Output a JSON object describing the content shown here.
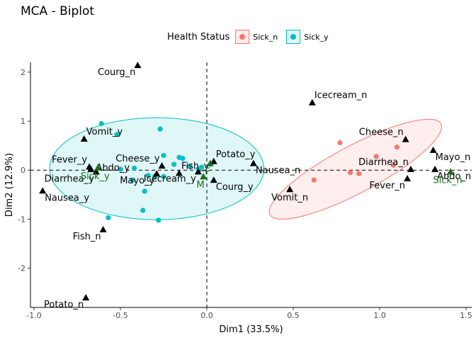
{
  "chart_data": {
    "type": "scatter",
    "title": "MCA - Biplot",
    "xlabel": "Dim1 (33.5%)",
    "ylabel": "Dim2 (12.9%)",
    "xlim": [
      -1.0,
      1.5
    ],
    "ylim": [
      -2.8,
      2.2
    ],
    "x_ticks": [
      "-1.0",
      "-0.5",
      "0.0",
      "0.5",
      "1.0",
      "1.5"
    ],
    "y_ticks": [
      "-2",
      "-1",
      "0",
      "1",
      "2"
    ],
    "grid": false,
    "reference_lines": {
      "x": 0,
      "y": 0,
      "style": "dashed"
    },
    "legend": {
      "title": "Health Status",
      "position": "top",
      "entries": [
        {
          "label": "Sick_n",
          "color": "#f8766d",
          "fill": "#fdecea"
        },
        {
          "label": "Sick_y",
          "color": "#00bfc4",
          "fill": "#e1f6f6"
        }
      ]
    },
    "series": [
      {
        "name": "Sick_n",
        "color": "#f8766d",
        "points": [
          [
            0.77,
            0.56
          ],
          [
            0.62,
            -0.2
          ],
          [
            0.83,
            -0.05
          ],
          [
            0.88,
            -0.07
          ],
          [
            0.98,
            0.28
          ],
          [
            1.1,
            0.47
          ],
          [
            1.08,
            0.1
          ]
        ]
      },
      {
        "name": "Sick_y",
        "color": "#00bfc4",
        "points": [
          [
            -0.61,
            0.95
          ],
          [
            -0.52,
            0.73
          ],
          [
            -0.5,
            0.02
          ],
          [
            -0.27,
            0.84
          ],
          [
            -0.25,
            0.3
          ],
          [
            -0.42,
            0.04
          ],
          [
            -0.19,
            0.12
          ],
          [
            -0.16,
            0.26
          ],
          [
            -0.14,
            0.24
          ],
          [
            -0.1,
            0.08
          ],
          [
            -0.43,
            -0.2
          ],
          [
            -0.36,
            -0.43
          ],
          [
            -0.34,
            -0.11
          ],
          [
            -0.3,
            -0.12
          ],
          [
            -0.25,
            -0.13
          ],
          [
            -0.37,
            -0.82
          ],
          [
            -0.28,
            -1.02
          ],
          [
            -0.57,
            -0.97
          ],
          [
            -0.05,
            0.02
          ],
          [
            -0.03,
            0.06
          ],
          [
            0.02,
            0.12
          ]
        ]
      }
    ],
    "variable_categories": [
      {
        "label": "Courg_n",
        "x": -0.4,
        "y": 2.14,
        "label_pos": "below-left"
      },
      {
        "label": "Icecream_n",
        "x": 0.61,
        "y": 1.38,
        "label_pos": "above-right"
      },
      {
        "label": "Cheese_n",
        "x": 1.15,
        "y": 0.63,
        "label_pos": "above-left"
      },
      {
        "label": "Vomit_y",
        "x": -0.71,
        "y": 0.64,
        "label_pos": "above-right"
      },
      {
        "label": "Mayo_n",
        "x": 1.31,
        "y": 0.41,
        "label_pos": "below-right"
      },
      {
        "label": "Cheese_y",
        "x": -0.26,
        "y": 0.09,
        "label_pos": "above-left"
      },
      {
        "label": "Potato_y",
        "x": 0.04,
        "y": 0.18,
        "label_pos": "above-right"
      },
      {
        "label": "Fever_y",
        "x": -0.68,
        "y": 0.07,
        "label_pos": "above-left"
      },
      {
        "label": "Abdo_y",
        "x": -0.67,
        "y": 0.02,
        "label_pos": "right"
      },
      {
        "label": "Fish_y",
        "x": -0.16,
        "y": -0.06,
        "label_pos": "above-right"
      },
      {
        "label": "Nausea_n",
        "x": 0.27,
        "y": 0.14,
        "label_pos": "below-right"
      },
      {
        "label": "Diarrhea_n",
        "x": 1.18,
        "y": 0.02,
        "label_pos": "above-left"
      },
      {
        "label": "Diarrhea_y",
        "x": -0.64,
        "y": -0.03,
        "label_pos": "below-left"
      },
      {
        "label": "Mayo_y",
        "x": -0.29,
        "y": -0.07,
        "label_pos": "below-left"
      },
      {
        "label": "Courg_y",
        "x": 0.04,
        "y": -0.2,
        "label_pos": "below-right"
      },
      {
        "label": "Fever_n",
        "x": 1.16,
        "y": -0.17,
        "label_pos": "below-left"
      },
      {
        "label": "Abdo_n",
        "x": 1.32,
        "y": 0.02,
        "label_pos": "below-right"
      },
      {
        "label": "Nausea_y",
        "x": -0.95,
        "y": -0.42,
        "label_pos": "below-right"
      },
      {
        "label": "Vomit_n",
        "x": 0.48,
        "y": -0.39,
        "label_pos": "below"
      },
      {
        "label": "Icecream_y",
        "x": -0.05,
        "y": -0.03,
        "label_pos": "below-left"
      },
      {
        "label": "Fish_n",
        "x": -0.6,
        "y": -1.21,
        "label_pos": "below-left"
      },
      {
        "label": "Potato_n",
        "x": -0.7,
        "y": -2.6,
        "label_pos": "below-left"
      }
    ],
    "supplementary_categories": {
      "color": "#1a6b1a",
      "points": [
        {
          "label": "Sick_y",
          "x": -0.63,
          "y": 0.05
        },
        {
          "label": "M",
          "x": -0.02,
          "y": -0.13
        },
        {
          "label": "F",
          "x": 0.02,
          "y": 0.14
        },
        {
          "label": "Sick_n",
          "x": 1.41,
          "y": -0.03
        }
      ]
    },
    "ellipses": [
      {
        "group": "Sick_y",
        "cx": -0.29,
        "cy": 0.03,
        "rx": 0.62,
        "ry": 1.04,
        "rotation_deg": 0,
        "color": "#00bfc4"
      },
      {
        "group": "Sick_n",
        "cx": 0.86,
        "cy": 0.02,
        "rx": 0.56,
        "ry": 0.48,
        "rotation_deg": -28,
        "color": "#f8766d"
      }
    ]
  }
}
